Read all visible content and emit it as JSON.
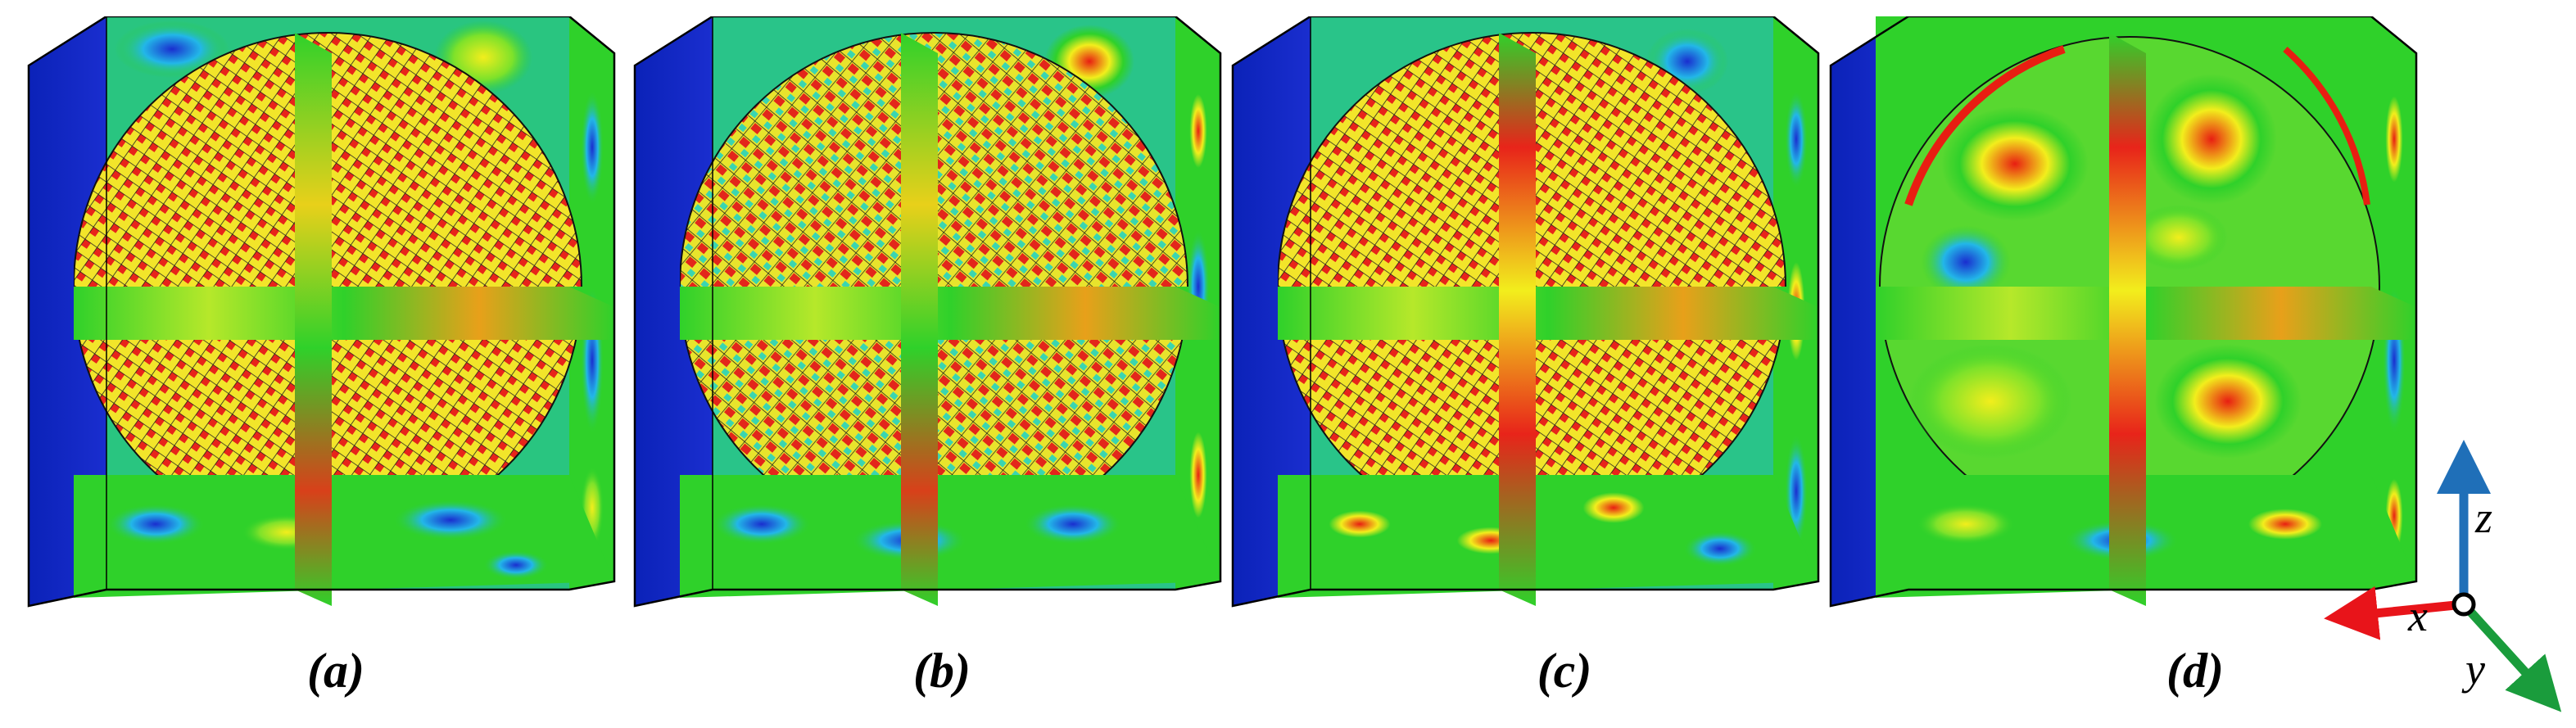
{
  "panels": [
    {
      "id": "a",
      "caption": "(a)"
    },
    {
      "id": "b",
      "caption": "(b)"
    },
    {
      "id": "c",
      "caption": "(c)"
    },
    {
      "id": "d",
      "caption": "(d)"
    }
  ],
  "axes": {
    "x_label": "x",
    "y_label": "y",
    "z_label": "z",
    "x_color": "#e8141a",
    "y_color": "#1a9c3c",
    "z_color": "#1f6fb8"
  },
  "colors": {
    "low": "#1a2ecf",
    "mid_low": "#22b7e8",
    "mid": "#2fd12a",
    "mid_high": "#f2ee1c",
    "high": "#e81e12",
    "edge": "#0a1a9a"
  }
}
